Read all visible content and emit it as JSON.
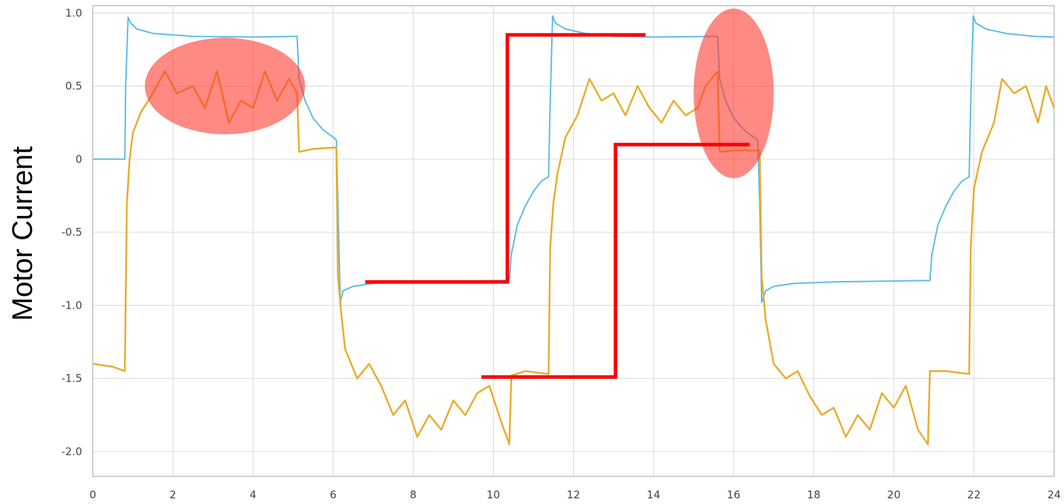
{
  "chart_data": {
    "type": "line",
    "ylabel": "Motor Current",
    "xlim": [
      0,
      24
    ],
    "ylim": [
      -2.17,
      1.05
    ],
    "grid": true,
    "x_ticks": [
      0,
      2,
      4,
      6,
      8,
      10,
      12,
      14,
      16,
      18,
      20,
      22,
      24
    ],
    "x_tick_labels": [
      "0",
      "2",
      "4",
      "6",
      "8",
      "10",
      "12",
      "14",
      "16",
      "18",
      "20",
      "22",
      "24"
    ],
    "y_ticks": [
      1.0,
      0.5,
      0,
      -0.5,
      -1.0,
      -1.5,
      -2.0
    ],
    "y_tick_labels": [
      "1.0",
      "0.5",
      "0",
      "-0.5",
      "-1.0",
      "-1.5",
      "-2.0"
    ],
    "series": [
      {
        "color": "#5bbce4",
        "points": [
          [
            0,
            0.0
          ],
          [
            0.8,
            0.0
          ],
          [
            0.82,
            0.5
          ],
          [
            0.88,
            0.97
          ],
          [
            0.95,
            0.93
          ],
          [
            1.1,
            0.89
          ],
          [
            1.5,
            0.86
          ],
          [
            2.5,
            0.84
          ],
          [
            4.0,
            0.835
          ],
          [
            5.1,
            0.84
          ],
          [
            5.15,
            0.55
          ],
          [
            5.3,
            0.4
          ],
          [
            5.5,
            0.28
          ],
          [
            5.75,
            0.2
          ],
          [
            6.0,
            0.15
          ],
          [
            6.08,
            0.13
          ],
          [
            6.12,
            -0.3
          ],
          [
            6.18,
            -0.98
          ],
          [
            6.25,
            -0.9
          ],
          [
            6.5,
            -0.87
          ],
          [
            7.0,
            -0.85
          ],
          [
            8.0,
            -0.84
          ],
          [
            10.4,
            -0.83
          ],
          [
            10.45,
            -0.65
          ],
          [
            10.6,
            -0.45
          ],
          [
            10.8,
            -0.32
          ],
          [
            11.0,
            -0.22
          ],
          [
            11.2,
            -0.15
          ],
          [
            11.38,
            -0.12
          ],
          [
            11.42,
            0.4
          ],
          [
            11.48,
            0.98
          ],
          [
            11.55,
            0.93
          ],
          [
            11.8,
            0.89
          ],
          [
            12.3,
            0.86
          ],
          [
            13.0,
            0.84
          ],
          [
            14.0,
            0.835
          ],
          [
            15.6,
            0.84
          ],
          [
            15.65,
            0.55
          ],
          [
            15.8,
            0.4
          ],
          [
            16.0,
            0.28
          ],
          [
            16.3,
            0.19
          ],
          [
            16.6,
            0.13
          ],
          [
            16.65,
            -0.3
          ],
          [
            16.7,
            -0.98
          ],
          [
            16.8,
            -0.9
          ],
          [
            17.0,
            -0.87
          ],
          [
            17.5,
            -0.85
          ],
          [
            18.5,
            -0.84
          ],
          [
            20.9,
            -0.83
          ],
          [
            20.95,
            -0.65
          ],
          [
            21.1,
            -0.45
          ],
          [
            21.3,
            -0.32
          ],
          [
            21.5,
            -0.22
          ],
          [
            21.7,
            -0.15
          ],
          [
            21.88,
            -0.12
          ],
          [
            21.92,
            0.4
          ],
          [
            21.98,
            0.98
          ],
          [
            22.05,
            0.93
          ],
          [
            22.3,
            0.89
          ],
          [
            22.8,
            0.86
          ],
          [
            23.5,
            0.84
          ],
          [
            24,
            0.835
          ]
        ]
      },
      {
        "color": "#e8ac2a",
        "points": [
          [
            0,
            -1.4
          ],
          [
            0.5,
            -1.42
          ],
          [
            0.8,
            -1.45
          ],
          [
            0.85,
            -0.3
          ],
          [
            0.92,
            0.0
          ],
          [
            1.0,
            0.18
          ],
          [
            1.2,
            0.32
          ],
          [
            1.5,
            0.45
          ],
          [
            1.8,
            0.6
          ],
          [
            2.1,
            0.45
          ],
          [
            2.5,
            0.5
          ],
          [
            2.8,
            0.35
          ],
          [
            3.1,
            0.6
          ],
          [
            3.4,
            0.25
          ],
          [
            3.7,
            0.4
          ],
          [
            4.0,
            0.35
          ],
          [
            4.3,
            0.6
          ],
          [
            4.6,
            0.4
          ],
          [
            4.9,
            0.55
          ],
          [
            5.1,
            0.45
          ],
          [
            5.15,
            0.05
          ],
          [
            5.5,
            0.07
          ],
          [
            6.08,
            0.08
          ],
          [
            6.12,
            -0.8
          ],
          [
            6.2,
            -1.05
          ],
          [
            6.3,
            -1.3
          ],
          [
            6.6,
            -1.5
          ],
          [
            6.9,
            -1.4
          ],
          [
            7.2,
            -1.55
          ],
          [
            7.5,
            -1.75
          ],
          [
            7.8,
            -1.65
          ],
          [
            8.1,
            -1.9
          ],
          [
            8.4,
            -1.75
          ],
          [
            8.7,
            -1.85
          ],
          [
            9.0,
            -1.65
          ],
          [
            9.3,
            -1.75
          ],
          [
            9.6,
            -1.6
          ],
          [
            9.9,
            -1.55
          ],
          [
            10.2,
            -1.8
          ],
          [
            10.4,
            -1.95
          ],
          [
            10.45,
            -1.48
          ],
          [
            10.8,
            -1.45
          ],
          [
            11.38,
            -1.47
          ],
          [
            11.42,
            -0.6
          ],
          [
            11.5,
            -0.3
          ],
          [
            11.6,
            -0.1
          ],
          [
            11.8,
            0.15
          ],
          [
            12.1,
            0.3
          ],
          [
            12.4,
            0.55
          ],
          [
            12.7,
            0.4
          ],
          [
            13.0,
            0.45
          ],
          [
            13.3,
            0.3
          ],
          [
            13.6,
            0.5
          ],
          [
            13.9,
            0.35
          ],
          [
            14.2,
            0.25
          ],
          [
            14.5,
            0.4
          ],
          [
            14.8,
            0.3
          ],
          [
            15.1,
            0.35
          ],
          [
            15.3,
            0.5
          ],
          [
            15.6,
            0.6
          ],
          [
            15.65,
            0.05
          ],
          [
            16.0,
            0.06
          ],
          [
            16.65,
            0.06
          ],
          [
            16.7,
            -0.8
          ],
          [
            16.8,
            -1.1
          ],
          [
            17.0,
            -1.4
          ],
          [
            17.3,
            -1.5
          ],
          [
            17.6,
            -1.45
          ],
          [
            17.9,
            -1.62
          ],
          [
            18.2,
            -1.75
          ],
          [
            18.5,
            -1.7
          ],
          [
            18.8,
            -1.9
          ],
          [
            19.1,
            -1.75
          ],
          [
            19.4,
            -1.85
          ],
          [
            19.7,
            -1.6
          ],
          [
            20.0,
            -1.7
          ],
          [
            20.3,
            -1.55
          ],
          [
            20.6,
            -1.85
          ],
          [
            20.85,
            -1.95
          ],
          [
            20.9,
            -1.45
          ],
          [
            21.3,
            -1.45
          ],
          [
            21.88,
            -1.47
          ],
          [
            21.92,
            -0.6
          ],
          [
            22.0,
            -0.2
          ],
          [
            22.2,
            0.05
          ],
          [
            22.5,
            0.25
          ],
          [
            22.7,
            0.55
          ],
          [
            23.0,
            0.45
          ],
          [
            23.3,
            0.5
          ],
          [
            23.6,
            0.25
          ],
          [
            23.8,
            0.5
          ],
          [
            24,
            0.35
          ]
        ]
      }
    ],
    "annotations": {
      "step_lines": [
        {
          "color": "#ff0000",
          "points": [
            [
              6.8,
              -0.84
            ],
            [
              10.35,
              -0.84
            ],
            [
              10.35,
              0.85
            ],
            [
              13.8,
              0.85
            ]
          ]
        },
        {
          "color": "#ff0000",
          "points": [
            [
              9.7,
              -1.49
            ],
            [
              13.05,
              -1.49
            ],
            [
              13.05,
              0.1
            ],
            [
              16.4,
              0.1
            ]
          ]
        }
      ],
      "ellipses": [
        {
          "color": "#ff3b30",
          "cx": 3.3,
          "cy": 0.5,
          "rx": 2.0,
          "ry": 0.33
        },
        {
          "color": "#ff3b30",
          "cx": 16.0,
          "cy": 0.45,
          "rx": 1.0,
          "ry": 0.58
        }
      ]
    },
    "grid_color": "#d9d9d9",
    "axis_color": "#bfbfbf"
  }
}
